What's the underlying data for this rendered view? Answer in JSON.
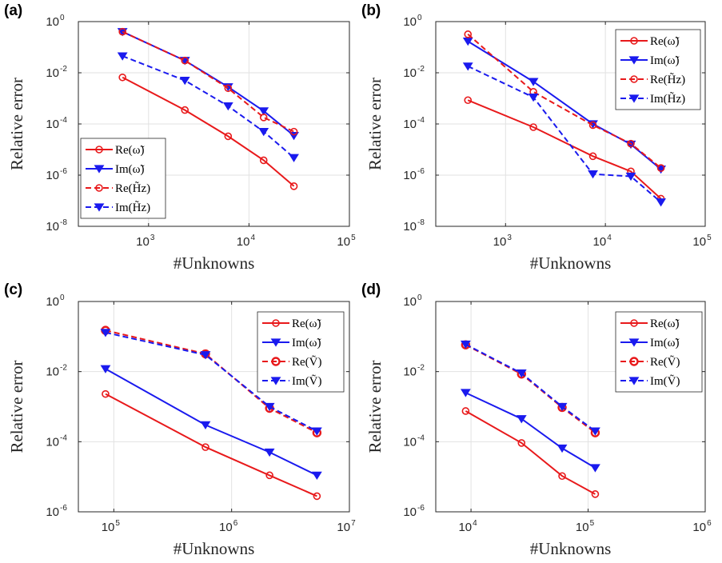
{
  "colors": {
    "red": "#e8191b",
    "blue": "#1a1aee",
    "grid": "#e2e2e2",
    "axis": "#262626"
  },
  "chart_data": [
    {
      "panel": "(a)",
      "type": "line",
      "xscale": "log",
      "yscale": "log",
      "xlim": [
        200,
        100000
      ],
      "ylim": [
        1e-08,
        1
      ],
      "xticks": [
        1000,
        10000,
        100000
      ],
      "yticks": [
        1e-08,
        1e-06,
        0.0001,
        0.01,
        1
      ],
      "xlabel": "#Unknowns",
      "ylabel": "Relative error",
      "grid": true,
      "legend_position": "bottom-left",
      "series": [
        {
          "name": "Re(ω̃)",
          "color": "#e8191b",
          "style": "solid",
          "marker": "circle",
          "x": [
            550,
            2300,
            6200,
            14000,
            28000
          ],
          "y": [
            0.0066,
            0.00035,
            3.3e-05,
            3.8e-06,
            3.7e-07
          ]
        },
        {
          "name": "Im(ω̃)",
          "color": "#1a1aee",
          "style": "solid",
          "marker": "triangle-down",
          "x": [
            550,
            2300,
            6200,
            14000,
            28000
          ],
          "y": [
            0.4,
            0.03,
            0.0028,
            0.00032,
            3.5e-05
          ]
        },
        {
          "name": "Re(H̃z)",
          "color": "#e8191b",
          "style": "dashed",
          "marker": "circle",
          "x": [
            550,
            2300,
            6200,
            14000,
            28000
          ],
          "y": [
            0.4,
            0.03,
            0.0025,
            0.00018,
            5e-05
          ]
        },
        {
          "name": "Im(H̃z)",
          "color": "#1a1aee",
          "style": "dashed",
          "marker": "triangle-down",
          "x": [
            550,
            2300,
            6200,
            14000,
            28000
          ],
          "y": [
            0.045,
            0.005,
            0.0005,
            5e-05,
            4.8e-06
          ]
        }
      ]
    },
    {
      "panel": "(b)",
      "type": "line",
      "xscale": "log",
      "yscale": "log",
      "xlim": [
        200,
        100000
      ],
      "ylim": [
        1e-08,
        1
      ],
      "xticks": [
        1000,
        10000,
        100000
      ],
      "yticks": [
        1e-08,
        1e-06,
        0.0001,
        0.01,
        1
      ],
      "xlabel": "#Unknowns",
      "ylabel": "Relative error",
      "grid": true,
      "legend_position": "top-right",
      "series": [
        {
          "name": "Re(ω̃)",
          "color": "#e8191b",
          "style": "solid",
          "marker": "circle",
          "x": [
            420,
            1900,
            7500,
            18000,
            36000
          ],
          "y": [
            0.00085,
            7.5e-05,
            5.5e-06,
            1.4e-06,
            1.2e-07
          ]
        },
        {
          "name": "Im(ω̃)",
          "color": "#1a1aee",
          "style": "solid",
          "marker": "triangle-down",
          "x": [
            420,
            1900,
            7500,
            18000,
            36000
          ],
          "y": [
            0.17,
            0.0045,
            0.0001,
            1.6e-05,
            1.7e-06
          ]
        },
        {
          "name": "Re(H̃z)",
          "color": "#e8191b",
          "style": "dashed",
          "marker": "circle",
          "x": [
            420,
            1900,
            7500,
            18000,
            36000
          ],
          "y": [
            0.32,
            0.0018,
            9e-05,
            1.7e-05,
            1.9e-06
          ]
        },
        {
          "name": "Im(H̃z)",
          "color": "#1a1aee",
          "style": "dashed",
          "marker": "triangle-down",
          "x": [
            420,
            1900,
            7500,
            18000,
            36000
          ],
          "y": [
            0.018,
            0.0011,
            1.1e-06,
            9e-07,
            8.8e-08
          ]
        }
      ]
    },
    {
      "panel": "(c)",
      "type": "line",
      "xscale": "log",
      "yscale": "log",
      "xlim": [
        50000,
        10000000
      ],
      "ylim": [
        1e-06,
        1
      ],
      "xticks": [
        100000,
        1000000,
        10000000
      ],
      "yticks": [
        1e-06,
        0.0001,
        0.01,
        1
      ],
      "xlabel": "#Unknowns",
      "ylabel": "Relative error",
      "grid": true,
      "legend_position": "top-right",
      "series": [
        {
          "name": "Re(ω̃)",
          "color": "#e8191b",
          "style": "solid",
          "marker": "circle",
          "x": [
            85000,
            600000,
            2100000,
            5300000
          ],
          "y": [
            0.0023,
            7e-05,
            1.1e-05,
            2.8e-06
          ]
        },
        {
          "name": "Im(ω̃)",
          "color": "#1a1aee",
          "style": "solid",
          "marker": "triangle-down",
          "x": [
            85000,
            600000,
            2100000,
            5300000
          ],
          "y": [
            0.012,
            0.0003,
            5e-05,
            1.1e-05
          ]
        },
        {
          "name": "Re(Ṽ)",
          "color": "#e8191b",
          "style": "dashed",
          "marker": "circle",
          "x": [
            85000,
            600000,
            2100000,
            5300000
          ],
          "y": [
            0.15,
            0.032,
            0.0009,
            0.00018
          ]
        },
        {
          "name": "Im(Ṽ)",
          "color": "#1a1aee",
          "style": "dashed",
          "marker": "triangle-down",
          "x": [
            85000,
            600000,
            2100000,
            5300000
          ],
          "y": [
            0.13,
            0.03,
            0.001,
            0.0002
          ]
        }
      ]
    },
    {
      "panel": "(d)",
      "type": "line",
      "xscale": "log",
      "yscale": "log",
      "xlim": [
        5000,
        1000000
      ],
      "ylim": [
        1e-06,
        1
      ],
      "xticks": [
        10000,
        100000,
        1000000
      ],
      "yticks": [
        1e-06,
        0.0001,
        0.01,
        1
      ],
      "xlabel": "#Unknowns",
      "ylabel": "Relative error",
      "grid": true,
      "legend_position": "top-right",
      "series": [
        {
          "name": "Re(ω̃)",
          "color": "#e8191b",
          "style": "solid",
          "marker": "circle",
          "x": [
            9000,
            27000,
            60000,
            115000
          ],
          "y": [
            0.00075,
            9.2e-05,
            1.05e-05,
            3.2e-06
          ]
        },
        {
          "name": "Im(ω̃)",
          "color": "#1a1aee",
          "style": "solid",
          "marker": "triangle-down",
          "x": [
            9000,
            27000,
            60000,
            115000
          ],
          "y": [
            0.0025,
            0.00045,
            6.5e-05,
            1.8e-05
          ]
        },
        {
          "name": "Re(Ṽ)",
          "color": "#e8191b",
          "style": "dashed",
          "marker": "circle",
          "x": [
            9000,
            27000,
            60000,
            115000
          ],
          "y": [
            0.058,
            0.0085,
            0.00095,
            0.00018
          ]
        },
        {
          "name": "Im(Ṽ)",
          "color": "#1a1aee",
          "style": "dashed",
          "marker": "triangle-down",
          "x": [
            9000,
            27000,
            60000,
            115000
          ],
          "y": [
            0.06,
            0.009,
            0.001,
            0.0002
          ]
        }
      ]
    }
  ]
}
